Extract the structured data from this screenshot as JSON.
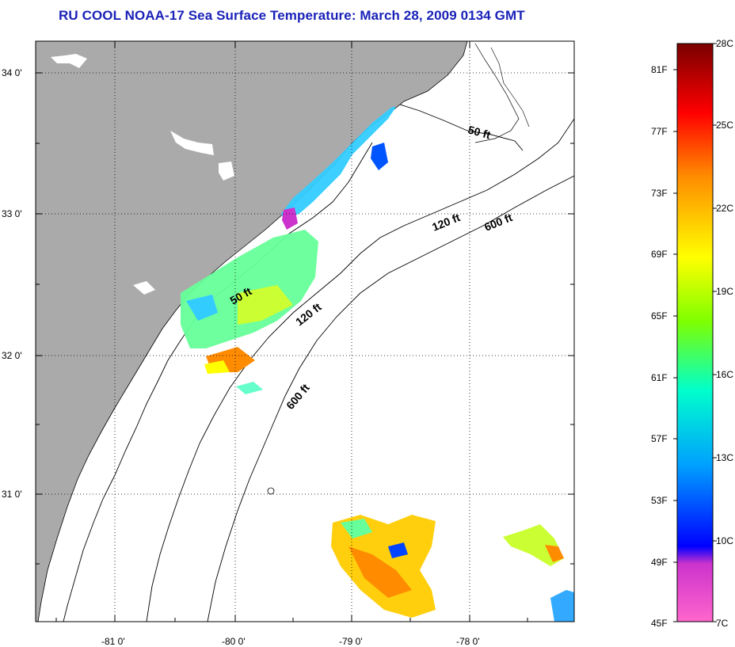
{
  "title": "RU COOL  NOAA-17  Sea Surface Temperature:  March 28, 2009 0134 GMT",
  "latitude_labels": [
    "34 0'",
    "33 0'",
    "32 0'",
    "31 0'"
  ],
  "longitude_labels": [
    "-81 0'",
    "-80 0'",
    "-79 0'",
    "-78 0'"
  ],
  "contour_labels": [
    "50 ft",
    "120 ft",
    "600 ft",
    "50 ft",
    "120 ft",
    "600 ft"
  ],
  "colorbar": {
    "fahrenheit_labels": [
      "81F",
      "77F",
      "73F",
      "69F",
      "65F",
      "61F",
      "57F",
      "53F",
      "49F",
      "45F"
    ],
    "celsius_labels": [
      "28C",
      "25C",
      "22C",
      "19C",
      "16C",
      "13C",
      "10C",
      "7C"
    ],
    "colors": [
      "#7a0000",
      "#ff0000",
      "#ff8c00",
      "#ffff00",
      "#7fff00",
      "#00ffcc",
      "#00a0ff",
      "#0000ff",
      "#cc33cc",
      "#ff66cc"
    ]
  },
  "colors": {
    "land": "#aaaaaa",
    "ocean": "#ffffff",
    "title": "#1a22b8"
  }
}
